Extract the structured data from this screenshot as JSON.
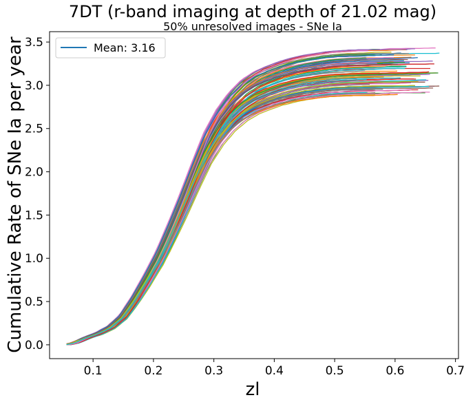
{
  "chart_data": {
    "type": "line",
    "title": "7DT (r-band imaging at depth of 21.02 mag)",
    "subtitle": "50% unresolved images - SNe Ia",
    "xlabel": "zl",
    "ylabel": "Cumulative Rate of SNe Ia per year",
    "xlim": [
      0.028,
      0.705
    ],
    "ylim": [
      -0.16,
      3.62
    ],
    "xticks": [
      0.1,
      0.2,
      0.3,
      0.4,
      0.5,
      0.6,
      0.7
    ],
    "xtick_labels": [
      "0.1",
      "0.2",
      "0.3",
      "0.4",
      "0.5",
      "0.6",
      "0.7"
    ],
    "yticks": [
      0.0,
      0.5,
      1.0,
      1.5,
      2.0,
      2.5,
      3.0,
      3.5
    ],
    "ytick_labels": [
      "0.0",
      "0.5",
      "1.0",
      "1.5",
      "2.0",
      "2.5",
      "3.0",
      "3.5"
    ],
    "grid": false,
    "legend": {
      "position": "top-left",
      "entries": [
        "Mean: 3.16"
      ]
    },
    "line_colors": [
      "#1f77b4",
      "#ff7f0e",
      "#2ca02c",
      "#d62728",
      "#9467bd",
      "#8c564b",
      "#e377c2",
      "#7f7f7f",
      "#bcbd22",
      "#17becf"
    ],
    "approx_mean_curve": {
      "x": [
        0.056,
        0.07,
        0.09,
        0.11,
        0.13,
        0.15,
        0.17,
        0.19,
        0.21,
        0.23,
        0.25,
        0.27,
        0.29,
        0.31,
        0.33,
        0.35,
        0.37,
        0.39,
        0.41,
        0.43,
        0.45,
        0.47,
        0.49,
        0.51,
        0.55,
        0.6,
        0.65
      ],
      "y": [
        0.0,
        0.02,
        0.08,
        0.13,
        0.2,
        0.32,
        0.52,
        0.75,
        1.0,
        1.3,
        1.62,
        1.96,
        2.28,
        2.52,
        2.7,
        2.83,
        2.92,
        2.98,
        3.03,
        3.07,
        3.1,
        3.12,
        3.14,
        3.15,
        3.16,
        3.16,
        3.16
      ]
    },
    "n_realizations": 100,
    "final_value_range": [
      2.86,
      3.43
    ],
    "end_x_range": [
      0.55,
      0.675
    ]
  }
}
